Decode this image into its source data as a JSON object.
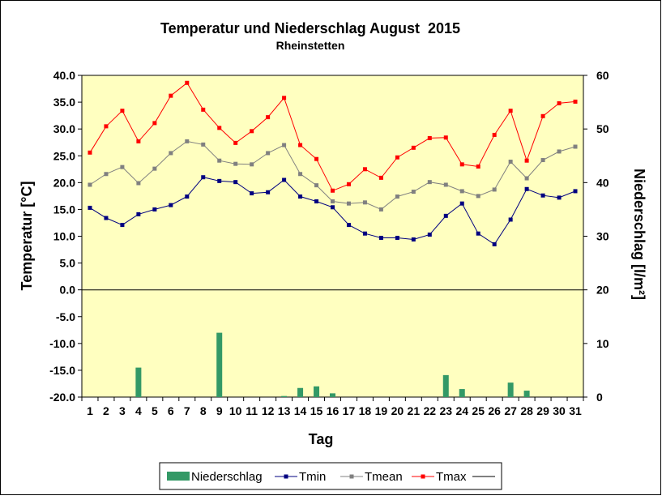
{
  "chart_data": {
    "type": "line",
    "title": "Temperatur und Niederschlag August  2015",
    "subtitle": "Rheinstetten",
    "xlabel": "Tag",
    "ylabel": "Temperatur [°C]",
    "ylabel_right": "Niederschlag [l/m²]",
    "categories": [
      "1",
      "2",
      "3",
      "4",
      "5",
      "6",
      "7",
      "8",
      "9",
      "10",
      "11",
      "12",
      "13",
      "14",
      "15",
      "16",
      "17",
      "18",
      "19",
      "20",
      "21",
      "22",
      "23",
      "24",
      "25",
      "26",
      "27",
      "28",
      "29",
      "30",
      "31"
    ],
    "ylim": [
      -20,
      40
    ],
    "ylim_right": [
      0,
      60
    ],
    "y_ticks": [
      "40.0",
      "35.0",
      "30.0",
      "25.0",
      "20.0",
      "15.0",
      "10.0",
      "5.0",
      "0.0",
      "-5.0",
      "-10.0",
      "-15.0",
      "-20.0"
    ],
    "y_ticks_right": [
      "60",
      "50",
      "40",
      "30",
      "20",
      "10",
      "0"
    ],
    "grid": false,
    "legend_position": "bottom",
    "series": [
      {
        "name": "Niederschlag",
        "type": "bar",
        "axis": "right",
        "color": "#339966",
        "values": [
          0,
          0,
          0,
          5.5,
          0,
          0,
          0,
          0,
          12,
          0,
          0,
          0,
          0.2,
          1.7,
          2,
          0.7,
          0,
          0,
          0,
          0,
          0,
          0,
          4.1,
          1.5,
          0,
          0,
          2.7,
          1.2,
          0,
          0,
          0
        ]
      },
      {
        "name": "Tmin",
        "type": "line",
        "axis": "left",
        "color": "#000080",
        "values": [
          15.3,
          13.4,
          12.1,
          14.1,
          15.0,
          15.8,
          17.4,
          21.0,
          20.3,
          20.1,
          18.0,
          18.2,
          20.5,
          17.4,
          16.5,
          15.4,
          12.1,
          10.5,
          9.7,
          9.7,
          9.4,
          10.3,
          13.8,
          16.1,
          10.5,
          8.5,
          13.1,
          18.8,
          17.6,
          17.2,
          18.4
        ]
      },
      {
        "name": "Tmean",
        "type": "line",
        "axis": "left",
        "color": "#808080",
        "values": [
          19.6,
          21.6,
          22.9,
          19.9,
          22.6,
          25.5,
          27.7,
          27.1,
          24.1,
          23.5,
          23.4,
          25.5,
          27.0,
          21.6,
          19.5,
          16.5,
          16.1,
          16.3,
          15.0,
          17.4,
          18.3,
          20.1,
          19.6,
          18.4,
          17.5,
          18.7,
          23.9,
          20.8,
          24.2,
          25.8,
          26.7
        ]
      },
      {
        "name": "Tmax",
        "type": "line",
        "axis": "left",
        "color": "#ff0000",
        "values": [
          25.6,
          30.5,
          33.4,
          27.7,
          31.1,
          36.2,
          38.6,
          33.6,
          30.2,
          27.4,
          29.6,
          32.2,
          35.8,
          27.0,
          24.4,
          18.5,
          19.7,
          22.5,
          20.9,
          24.7,
          26.5,
          28.3,
          28.4,
          23.4,
          23.0,
          28.9,
          33.4,
          24.1,
          32.4,
          34.8,
          35.1
        ]
      }
    ],
    "legend": [
      "Niederschlag",
      "Tmin",
      "Tmean",
      "Tmax",
      ""
    ],
    "colors": {
      "plot_background": "#ffffc0",
      "zero_line": "#000000"
    }
  }
}
